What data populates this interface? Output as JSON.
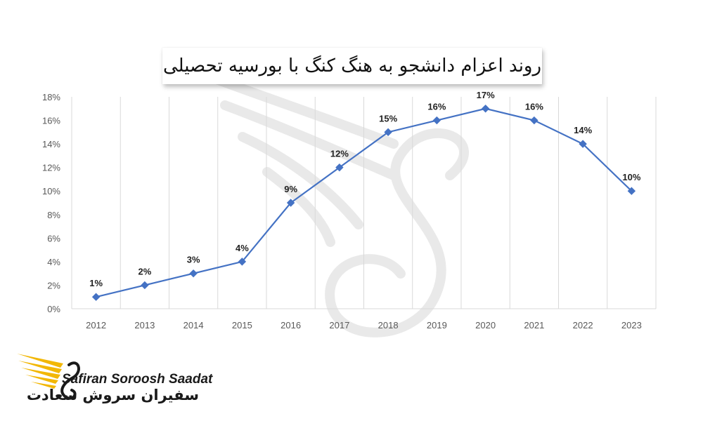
{
  "chart_data": {
    "type": "line",
    "title": "روند اعزام دانشجو به هنگ کنگ با بورسیه تحصیلی",
    "xlabel": "",
    "ylabel": "",
    "categories": [
      "2012",
      "2013",
      "2014",
      "2015",
      "2016",
      "2017",
      "2018",
      "2019",
      "2020",
      "2021",
      "2022",
      "2023"
    ],
    "values": [
      1,
      2,
      3,
      4,
      9,
      12,
      15,
      16,
      17,
      16,
      14,
      10
    ],
    "data_labels": [
      "1%",
      "2%",
      "3%",
      "4%",
      "9%",
      "12%",
      "15%",
      "16%",
      "17%",
      "16%",
      "14%",
      "10%"
    ],
    "y_ticks": [
      "0%",
      "2%",
      "4%",
      "6%",
      "8%",
      "10%",
      "12%",
      "14%",
      "16%",
      "18%"
    ],
    "ylim": [
      0,
      18
    ],
    "grid": "vertical",
    "marker": "diamond",
    "colors": {
      "line": "#4472c4",
      "grid": "#d9d9d9",
      "tick_text": "#595959"
    }
  },
  "brand": {
    "name_latin": "Safiran Soroosh Saadat",
    "name_persian": "سفیران سروش سعادت",
    "icon": "eagle-wing-logo",
    "colors": {
      "wing": "#f2b705",
      "text": "#1a1a1a"
    }
  },
  "watermark": {
    "icon": "eagle-wing-watermark",
    "color": "#e6e6e6"
  }
}
